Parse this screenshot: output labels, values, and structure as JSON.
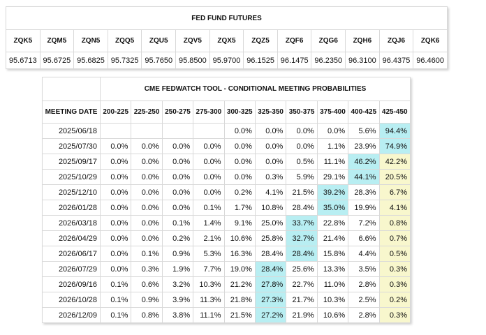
{
  "futures": {
    "title": "FED FUND FUTURES",
    "contracts": [
      "ZQK5",
      "ZQM5",
      "ZQN5",
      "ZQQ5",
      "ZQU5",
      "ZQV5",
      "ZQX5",
      "ZQZ5",
      "ZQF6",
      "ZQG6",
      "ZQH6",
      "ZQJ6",
      "ZQK6"
    ],
    "prices": [
      "95.6713",
      "95.6725",
      "95.6825",
      "95.7325",
      "95.7650",
      "95.8500",
      "95.9700",
      "96.1525",
      "96.1475",
      "96.2350",
      "96.3100",
      "96.4375",
      "96.4600"
    ]
  },
  "fedwatch": {
    "title": "CME FEDWATCH TOOL - CONDITIONAL MEETING PROBABILITIES",
    "date_header": "MEETING DATE",
    "ranges": [
      "200-225",
      "225-250",
      "250-275",
      "275-300",
      "300-325",
      "325-350",
      "350-375",
      "375-400",
      "400-425",
      "425-450"
    ],
    "highlight_colors": {
      "max": "#b8eef2",
      "current_range": "#f8f7cd"
    },
    "rows": [
      {
        "date": "2025/06/18",
        "values": [
          "",
          "",
          "",
          "",
          "0.0%",
          "0.0%",
          "0.0%",
          "0.0%",
          "5.6%",
          "94.4%"
        ],
        "max_index": 9
      },
      {
        "date": "2025/07/30",
        "values": [
          "0.0%",
          "0.0%",
          "0.0%",
          "0.0%",
          "0.0%",
          "0.0%",
          "0.0%",
          "1.1%",
          "23.9%",
          "74.9%"
        ],
        "max_index": 9
      },
      {
        "date": "2025/09/17",
        "values": [
          "0.0%",
          "0.0%",
          "0.0%",
          "0.0%",
          "0.0%",
          "0.0%",
          "0.5%",
          "11.1%",
          "46.2%",
          "42.2%"
        ],
        "max_index": 8
      },
      {
        "date": "2025/10/29",
        "values": [
          "0.0%",
          "0.0%",
          "0.0%",
          "0.0%",
          "0.0%",
          "0.3%",
          "5.9%",
          "29.1%",
          "44.1%",
          "20.5%"
        ],
        "max_index": 8
      },
      {
        "date": "2025/12/10",
        "values": [
          "0.0%",
          "0.0%",
          "0.0%",
          "0.0%",
          "0.2%",
          "4.1%",
          "21.5%",
          "39.2%",
          "28.3%",
          "6.7%"
        ],
        "max_index": 7
      },
      {
        "date": "2026/01/28",
        "values": [
          "0.0%",
          "0.0%",
          "0.0%",
          "0.1%",
          "1.7%",
          "10.8%",
          "28.4%",
          "35.0%",
          "19.9%",
          "4.1%"
        ],
        "max_index": 7
      },
      {
        "date": "2026/03/18",
        "values": [
          "0.0%",
          "0.0%",
          "0.1%",
          "1.4%",
          "9.1%",
          "25.0%",
          "33.7%",
          "22.8%",
          "7.2%",
          "0.8%"
        ],
        "max_index": 6
      },
      {
        "date": "2026/04/29",
        "values": [
          "0.0%",
          "0.0%",
          "0.2%",
          "2.1%",
          "10.6%",
          "25.8%",
          "32.7%",
          "21.4%",
          "6.6%",
          "0.7%"
        ],
        "max_index": 6
      },
      {
        "date": "2026/06/17",
        "values": [
          "0.0%",
          "0.1%",
          "0.9%",
          "5.3%",
          "16.3%",
          "28.4%",
          "28.4%",
          "15.8%",
          "4.4%",
          "0.5%"
        ],
        "max_index": 6
      },
      {
        "date": "2026/07/29",
        "values": [
          "0.0%",
          "0.3%",
          "1.9%",
          "7.7%",
          "19.0%",
          "28.4%",
          "25.6%",
          "13.3%",
          "3.5%",
          "0.3%"
        ],
        "max_index": 5
      },
      {
        "date": "2026/09/16",
        "values": [
          "0.1%",
          "0.6%",
          "3.2%",
          "10.3%",
          "21.2%",
          "27.8%",
          "22.7%",
          "11.0%",
          "2.8%",
          "0.3%"
        ],
        "max_index": 5
      },
      {
        "date": "2026/10/28",
        "values": [
          "0.1%",
          "0.9%",
          "3.9%",
          "11.3%",
          "21.8%",
          "27.3%",
          "21.7%",
          "10.3%",
          "2.5%",
          "0.2%"
        ],
        "max_index": 5
      },
      {
        "date": "2026/12/09",
        "values": [
          "0.1%",
          "0.8%",
          "3.8%",
          "11.1%",
          "21.5%",
          "27.2%",
          "21.9%",
          "10.6%",
          "2.8%",
          "0.3%"
        ],
        "max_index": 5
      }
    ]
  }
}
